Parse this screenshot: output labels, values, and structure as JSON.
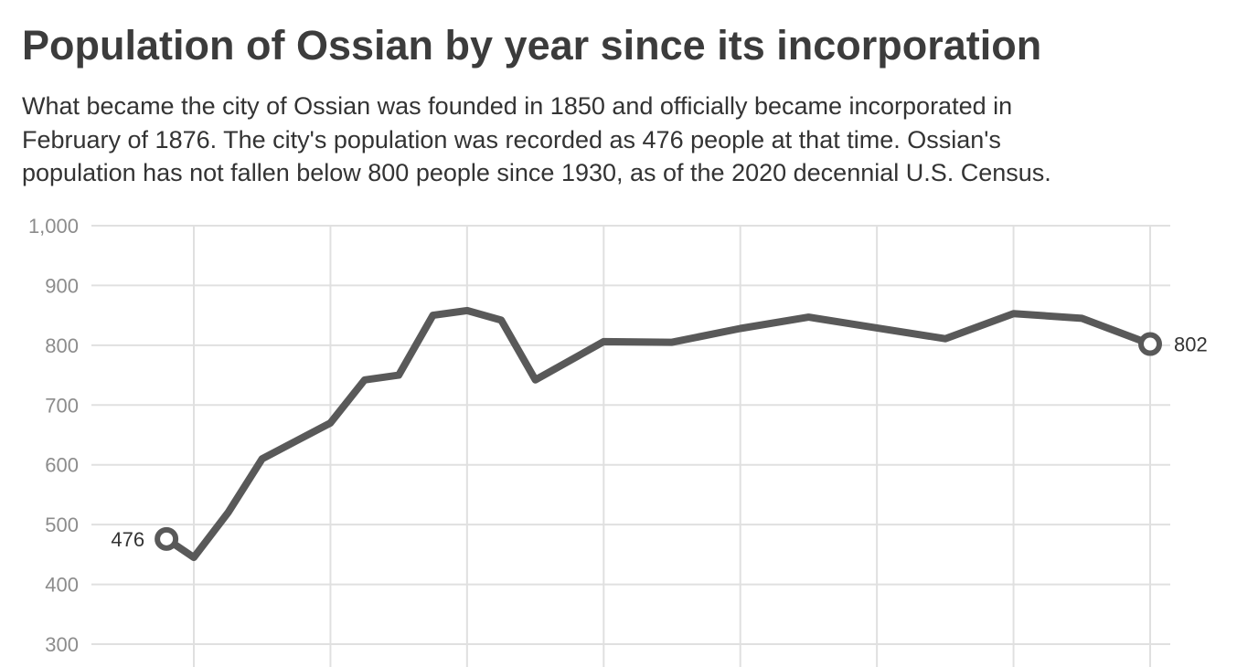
{
  "header": {
    "title": "Population of Ossian by year since its incorporation",
    "subtitle_lines": [
      "What became the city of Ossian was founded in 1850 and officially became incorporated in",
      "February of 1876. The city's population was recorded as 476 people at that time. Ossian's",
      "population has not fallen below 800 people since 1930, as of the 2020 decennial U.S. Census."
    ]
  },
  "colors": {
    "line": "#595959",
    "grid": "#e0e0e0",
    "tick_text": "#8c8c8c",
    "title_text": "#3c3c3c"
  },
  "chart_data": {
    "type": "line",
    "title": "Population of Ossian by year since its incorporation",
    "xlabel": "",
    "ylabel": "",
    "ylim": [
      300,
      1000
    ],
    "xlim": [
      1870,
      2020
    ],
    "grid": true,
    "x_grid_years": [
      1880,
      1900,
      1920,
      1940,
      1960,
      1980,
      2000,
      2020
    ],
    "yticks": [
      300,
      400,
      500,
      600,
      700,
      800,
      900,
      1000
    ],
    "ytick_labels": [
      "300",
      "400",
      "500",
      "600",
      "700",
      "800",
      "900",
      "1,000"
    ],
    "series": [
      {
        "x": [
          1876,
          1880,
          1885,
          1890,
          1895,
          1900,
          1905,
          1910,
          1915,
          1920,
          1925,
          1930,
          1940,
          1950,
          1960,
          1970,
          1980,
          1990,
          2000,
          2010,
          2020
        ],
        "values": [
          476,
          445,
          520,
          610,
          640,
          670,
          742,
          750,
          850,
          858,
          842,
          742,
          806,
          805,
          828,
          847,
          829,
          811,
          853,
          845,
          802
        ]
      }
    ],
    "annotations": [
      {
        "x": 1876,
        "value": 476,
        "text": "476"
      },
      {
        "x": 2020,
        "value": 802,
        "text": "802"
      }
    ]
  }
}
